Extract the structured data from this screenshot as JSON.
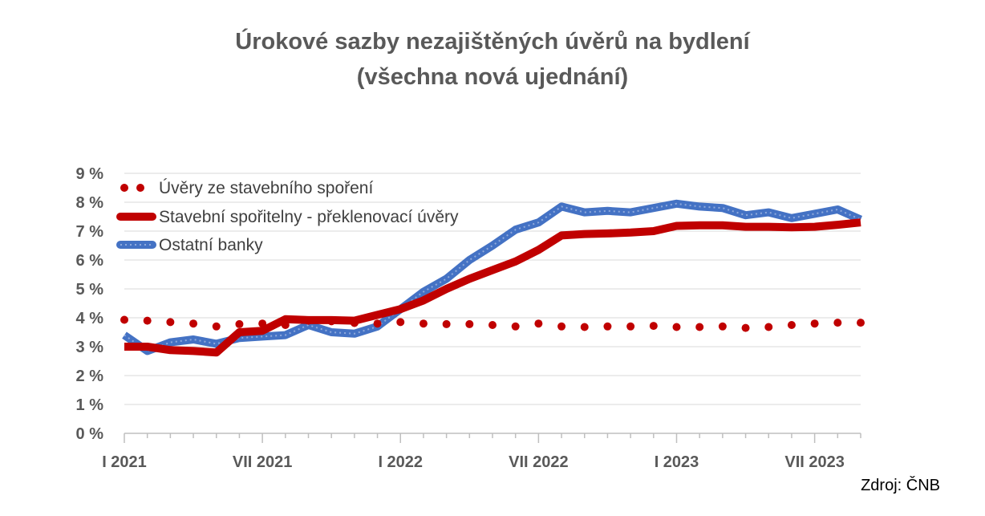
{
  "title_line1": "Úrokové sazby nezajištěných úvěrů na bydlení",
  "title_line2": "(všechna nová ujednání)",
  "source": "Zdroj: ČNB",
  "chart_data": {
    "type": "line",
    "ylim": [
      0,
      9
    ],
    "y_ticks": [
      "0 %",
      "1 %",
      "2 %",
      "3 %",
      "4 %",
      "5 %",
      "6 %",
      "7 %",
      "8 %",
      "9 %"
    ],
    "y_unit": "%",
    "grid": true,
    "legend_position": "top-left",
    "x": [
      "2021-01",
      "2021-02",
      "2021-03",
      "2021-04",
      "2021-05",
      "2021-06",
      "2021-07",
      "2021-08",
      "2021-09",
      "2021-10",
      "2021-11",
      "2021-12",
      "2022-01",
      "2022-02",
      "2022-03",
      "2022-04",
      "2022-05",
      "2022-06",
      "2022-07",
      "2022-08",
      "2022-09",
      "2022-10",
      "2022-11",
      "2022-12",
      "2023-01",
      "2023-02",
      "2023-03",
      "2023-04",
      "2023-05",
      "2023-06",
      "2023-07",
      "2023-08",
      "2023-09"
    ],
    "x_tick_labels": [
      {
        "label": "I 2021",
        "index": 0
      },
      {
        "label": "VII 2021",
        "index": 6
      },
      {
        "label": "I 2022",
        "index": 12
      },
      {
        "label": "VII 2022",
        "index": 18
      },
      {
        "label": "I 2023",
        "index": 24
      },
      {
        "label": "VII 2023",
        "index": 30
      }
    ],
    "series": [
      {
        "name": "Úvěry ze stavebního spoření",
        "style": "dotted",
        "color": "#C00000",
        "values": [
          3.93,
          3.9,
          3.85,
          3.8,
          3.7,
          3.78,
          3.8,
          3.75,
          3.9,
          3.88,
          3.82,
          3.8,
          3.85,
          3.8,
          3.78,
          3.78,
          3.75,
          3.7,
          3.8,
          3.7,
          3.68,
          3.7,
          3.7,
          3.72,
          3.68,
          3.68,
          3.7,
          3.65,
          3.68,
          3.75,
          3.8,
          3.83,
          3.83
        ]
      },
      {
        "name": "Stavební spořitelny - překlenovací úvěry",
        "style": "solid",
        "color": "#C00000",
        "values": [
          3.0,
          3.0,
          2.88,
          2.85,
          2.8,
          3.5,
          3.55,
          3.95,
          3.92,
          3.92,
          3.9,
          4.1,
          4.3,
          4.6,
          5.0,
          5.35,
          5.65,
          5.95,
          6.35,
          6.85,
          6.9,
          6.92,
          6.95,
          7.0,
          7.18,
          7.2,
          7.2,
          7.15,
          7.15,
          7.13,
          7.15,
          7.22,
          7.3
        ]
      },
      {
        "name": "Ostatní banky",
        "style": "solid",
        "color": "#4472C4",
        "values": [
          3.4,
          2.85,
          3.15,
          3.25,
          3.1,
          3.3,
          3.35,
          3.4,
          3.75,
          3.5,
          3.45,
          3.7,
          4.3,
          4.9,
          5.35,
          6.0,
          6.5,
          7.05,
          7.3,
          7.85,
          7.65,
          7.7,
          7.65,
          7.8,
          7.95,
          7.85,
          7.8,
          7.55,
          7.65,
          7.45,
          7.6,
          7.75,
          7.4
        ]
      }
    ]
  }
}
